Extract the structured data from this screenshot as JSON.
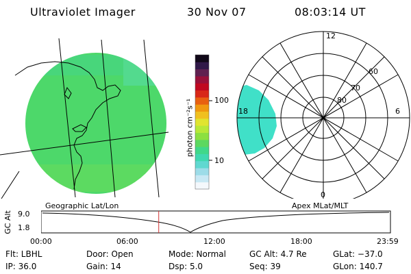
{
  "header": {
    "instrument": "Ultraviolet Imager",
    "date": "30 Nov 07",
    "time": "08:03:14 UT"
  },
  "geo_panel": {
    "label": "Geographic Lat/Lon",
    "fill_color": "#4dd86a"
  },
  "polar_panel": {
    "label": "Apex MLat/MLT",
    "mlt_labels": [
      "12",
      "18",
      "6",
      "0"
    ],
    "lat_labels": [
      "60",
      "70",
      "80"
    ],
    "fill_color": "#40e0c8"
  },
  "colorbar": {
    "unit_label": "photon cm⁻²s⁻¹",
    "ticks": [
      "100",
      "10"
    ],
    "colors": [
      "#f4f8fc",
      "#c8e8f4",
      "#9ddce8",
      "#60d8d0",
      "#40d8b0",
      "#40d88a",
      "#5cd860",
      "#8ce040",
      "#b8e838",
      "#e0e430",
      "#f0c020",
      "#f09810",
      "#e86010",
      "#d82818",
      "#c00820",
      "#98103a",
      "#602050",
      "#301848",
      "#100818"
    ]
  },
  "altitude_plot": {
    "ylabel": "GC Alt",
    "yticks": [
      "9.0",
      "1.8"
    ],
    "xticks": [
      "00:00",
      "06:00",
      "12:00",
      "18:00",
      "23:59"
    ],
    "marker_time_hours": 8.05
  },
  "info": {
    "flt": "Flt: LBHL",
    "ip": "IP: 36.0",
    "door": "Door: Open",
    "gain": "Gain: 14",
    "mode": "Mode: Normal",
    "dsp": "Dsp:    5.0",
    "gc_alt": "GC Alt: 4.7 Re",
    "seq": "Seq: 39",
    "glat": "GLat: −37.0",
    "glon": "GLon: 140.7"
  }
}
